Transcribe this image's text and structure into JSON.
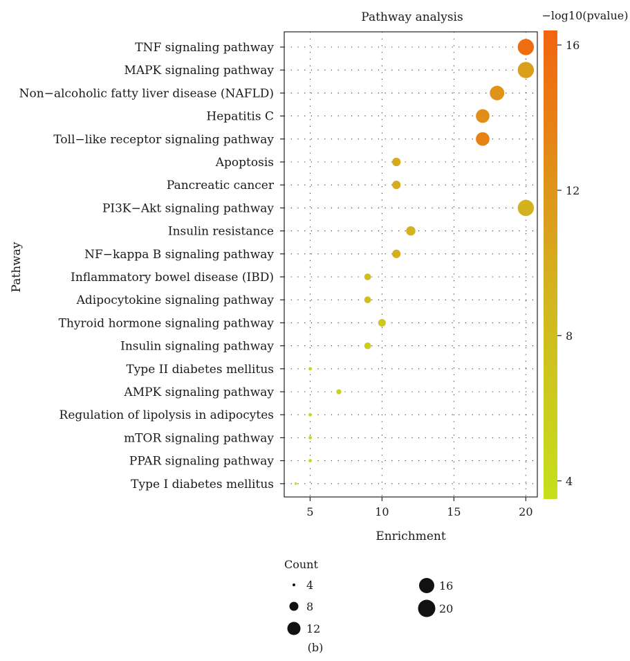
{
  "chart_data": {
    "type": "scatter",
    "title": "Pathway analysis",
    "xlabel": "Enrichment",
    "ylabel": "Pathway",
    "xlim": [
      3.2,
      20.8
    ],
    "xticks": [
      5,
      10,
      15,
      20
    ],
    "grid": true,
    "categories": [
      "TNF signaling pathway",
      "MAPK signaling pathway",
      "Non−alcoholic fatty liver disease (NAFLD)",
      "Hepatitis C",
      "Toll−like receptor signaling pathway",
      "Apoptosis",
      "Pancreatic cancer",
      "PI3K−Akt signaling pathway",
      "Insulin resistance",
      "NF−kappa B signaling pathway",
      "Inflammatory bowel disease (IBD)",
      "Adipocytokine signaling pathway",
      "Thyroid hormone signaling pathway",
      "Insulin signaling pathway",
      "Type II diabetes mellitus",
      "AMPK signaling pathway",
      "Regulation of lipolysis in adipocytes",
      "mTOR signaling pathway",
      "PPAR signaling pathway",
      "Type I diabetes mellitus"
    ],
    "points": [
      {
        "enrichment": 20,
        "count": 20,
        "neglog10p": 15.6
      },
      {
        "enrichment": 20,
        "count": 20,
        "neglog10p": 11.0
      },
      {
        "enrichment": 18,
        "count": 18,
        "neglog10p": 12.2
      },
      {
        "enrichment": 17,
        "count": 17,
        "neglog10p": 12.6
      },
      {
        "enrichment": 17,
        "count": 17,
        "neglog10p": 13.8
      },
      {
        "enrichment": 11,
        "count": 11,
        "neglog10p": 10.2
      },
      {
        "enrichment": 11,
        "count": 11,
        "neglog10p": 9.8
      },
      {
        "enrichment": 20,
        "count": 20,
        "neglog10p": 9.4
      },
      {
        "enrichment": 12,
        "count": 12,
        "neglog10p": 9.2
      },
      {
        "enrichment": 11,
        "count": 11,
        "neglog10p": 9.6
      },
      {
        "enrichment": 9,
        "count": 9,
        "neglog10p": 7.6
      },
      {
        "enrichment": 9,
        "count": 9,
        "neglog10p": 7.9
      },
      {
        "enrichment": 10,
        "count": 10,
        "neglog10p": 6.6
      },
      {
        "enrichment": 9,
        "count": 9,
        "neglog10p": 5.8
      },
      {
        "enrichment": 5,
        "count": 5,
        "neglog10p": 4.6
      },
      {
        "enrichment": 7,
        "count": 7,
        "neglog10p": 5.4
      },
      {
        "enrichment": 5,
        "count": 5,
        "neglog10p": 4.8
      },
      {
        "enrichment": 5,
        "count": 5,
        "neglog10p": 4.5
      },
      {
        "enrichment": 5,
        "count": 5,
        "neglog10p": 4.4
      },
      {
        "enrichment": 4,
        "count": 4,
        "neglog10p": 4.0
      }
    ],
    "color_scale": {
      "title": "−log10(pvalue)",
      "min": 3.5,
      "max": 16.4,
      "ticks": [
        4,
        8,
        12,
        16
      ],
      "low_color": "#c5e01c",
      "mid_color": "#d3b31f",
      "high_color": "#f2640f"
    },
    "size_legend": {
      "title": "Count",
      "items": [
        4,
        8,
        12,
        16,
        20
      ]
    }
  },
  "caption": "(b)"
}
